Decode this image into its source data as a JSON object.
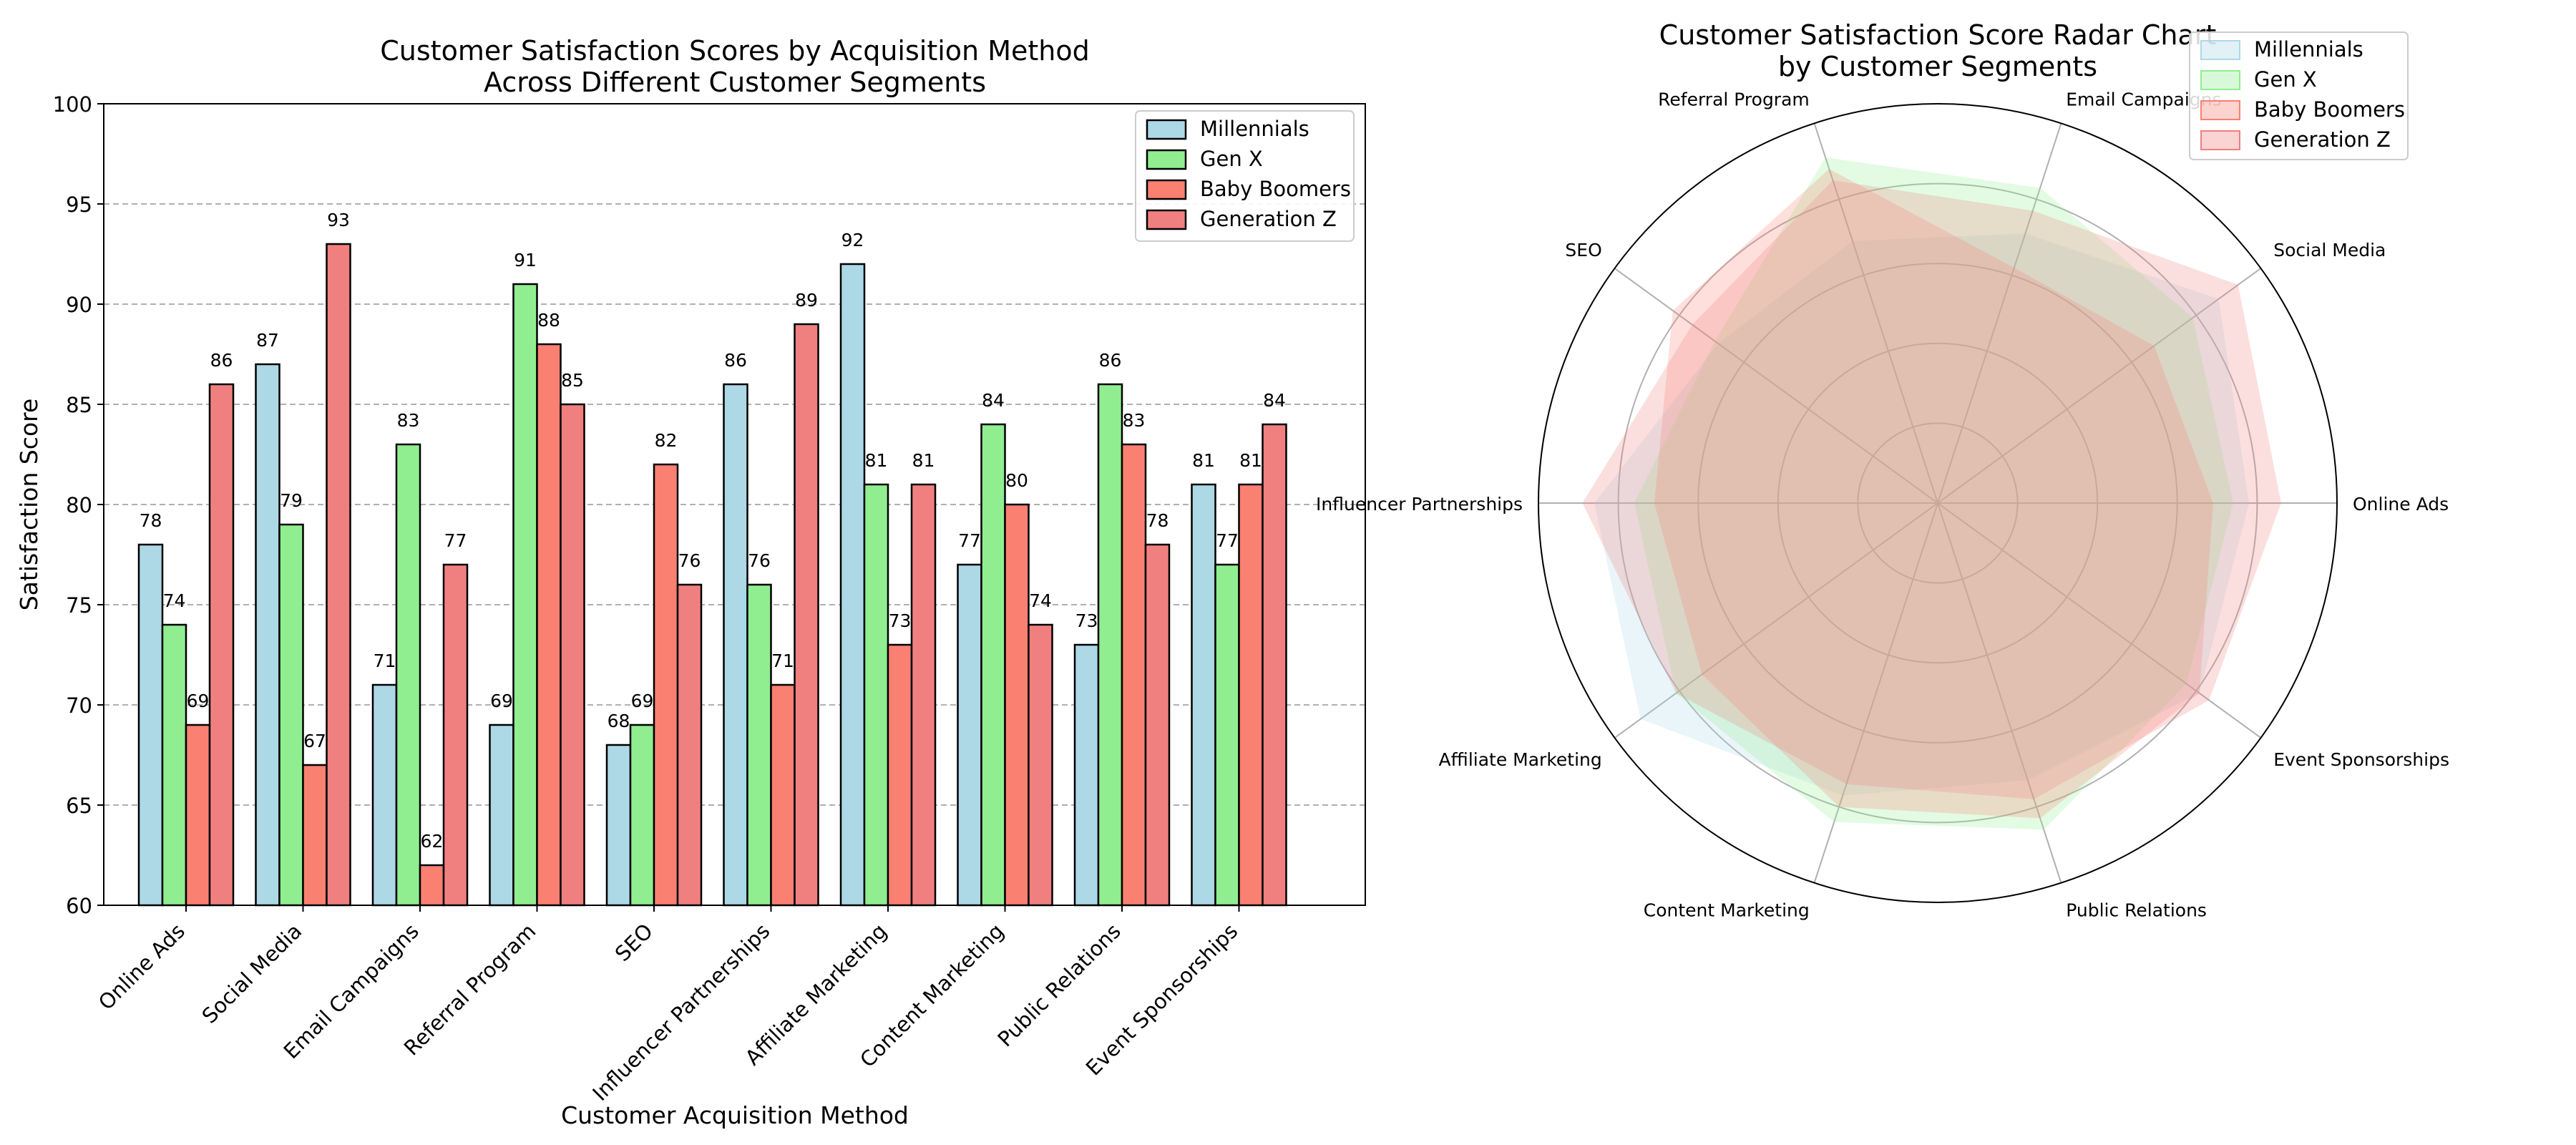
{
  "chart_data": [
    {
      "type": "bar",
      "title": "Customer Satisfaction Scores by Acquisition Method\nAcross Different Customer Segments",
      "xlabel": "Customer Acquisition Method",
      "ylabel": "Satisfaction Score",
      "ylim": [
        60,
        100
      ],
      "yticks": [
        60,
        65,
        70,
        75,
        80,
        85,
        90,
        95,
        100
      ],
      "grid": "y-dashed",
      "legend_position": "top-right",
      "categories": [
        "Online Ads",
        "Social Media",
        "Email Campaigns",
        "Referral Program",
        "SEO",
        "Influencer Partnerships",
        "Affiliate Marketing",
        "Content Marketing",
        "Public Relations",
        "Event Sponsorships"
      ],
      "series": [
        {
          "name": "Millennials",
          "color": "#add8e6",
          "values": [
            78,
            87,
            71,
            69,
            68,
            86,
            92,
            77,
            73,
            81
          ]
        },
        {
          "name": "Gen X",
          "color": "#90ee90",
          "values": [
            74,
            79,
            83,
            91,
            69,
            76,
            81,
            84,
            86,
            77
          ]
        },
        {
          "name": "Baby Boomers",
          "color": "#fa8072",
          "values": [
            69,
            67,
            62,
            88,
            82,
            71,
            73,
            80,
            83,
            81
          ]
        },
        {
          "name": "Generation Z",
          "color": "#f08080",
          "values": [
            86,
            93,
            77,
            85,
            76,
            89,
            81,
            74,
            78,
            84
          ]
        }
      ]
    },
    {
      "type": "radar",
      "title": "Customer Satisfaction Score Radar Chart\nby Customer Segments",
      "legend_position": "top-right",
      "rlim": [
        0,
        100
      ],
      "categories": [
        "Online Ads",
        "Social Media",
        "Email Campaigns",
        "Referral Program",
        "SEO",
        "Influencer Partnerships",
        "Affiliate Marketing",
        "Content Marketing",
        "Public Relations",
        "Event Sponsorships"
      ],
      "series": [
        {
          "name": "Millennials",
          "color": "#add8e6",
          "values": [
            78,
            87,
            71,
            69,
            68,
            86,
            92,
            77,
            73,
            81
          ]
        },
        {
          "name": "Gen X",
          "color": "#90ee90",
          "values": [
            74,
            79,
            83,
            91,
            69,
            76,
            81,
            84,
            86,
            77
          ]
        },
        {
          "name": "Baby Boomers",
          "color": "#fa8072",
          "values": [
            69,
            67,
            62,
            88,
            82,
            71,
            73,
            80,
            83,
            81
          ]
        },
        {
          "name": "Generation Z",
          "color": "#f08080",
          "values": [
            86,
            93,
            77,
            85,
            76,
            89,
            81,
            74,
            78,
            84
          ]
        }
      ]
    }
  ]
}
